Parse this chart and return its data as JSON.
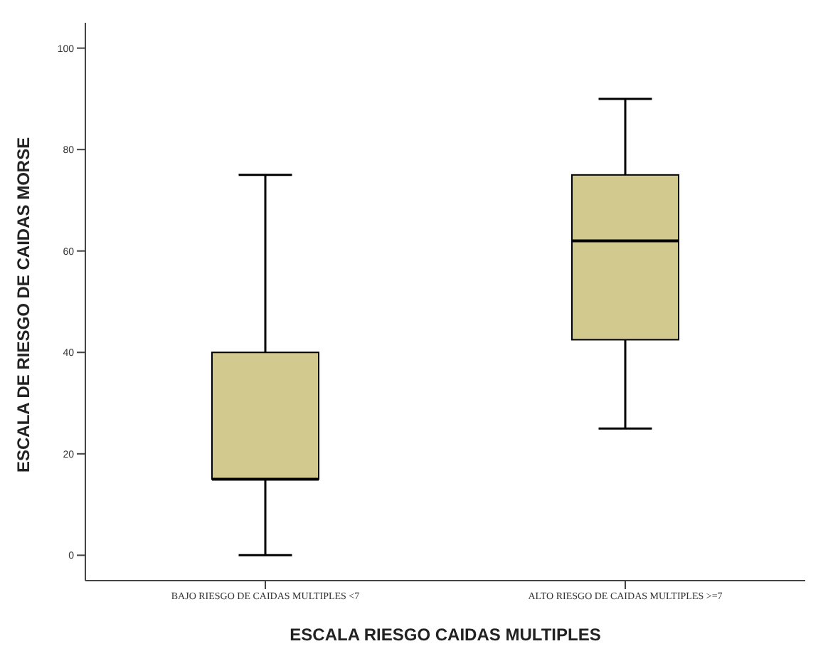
{
  "chart_data": {
    "type": "box",
    "xlabel": "ESCALA RIESGO CAIDAS MULTIPLES",
    "ylabel": "ESCALA DE RIESGO DE CAIDAS MORSE",
    "categories": [
      "BAJO RIESGO DE CAIDAS MULTIPLES <7",
      "ALTO RIESGO DE CAIDAS MULTIPLES >=7"
    ],
    "boxes": [
      {
        "low": 0,
        "q1": 15,
        "median": 15,
        "q3": 40,
        "high": 75
      },
      {
        "low": 25,
        "q1": 42.5,
        "median": 62,
        "q3": 75,
        "high": 90
      }
    ],
    "color": "#d2c98f",
    "ylim": [
      -5,
      105
    ],
    "yticks": [
      0,
      20,
      40,
      60,
      80,
      100
    ],
    "grid": false,
    "legend": false
  }
}
